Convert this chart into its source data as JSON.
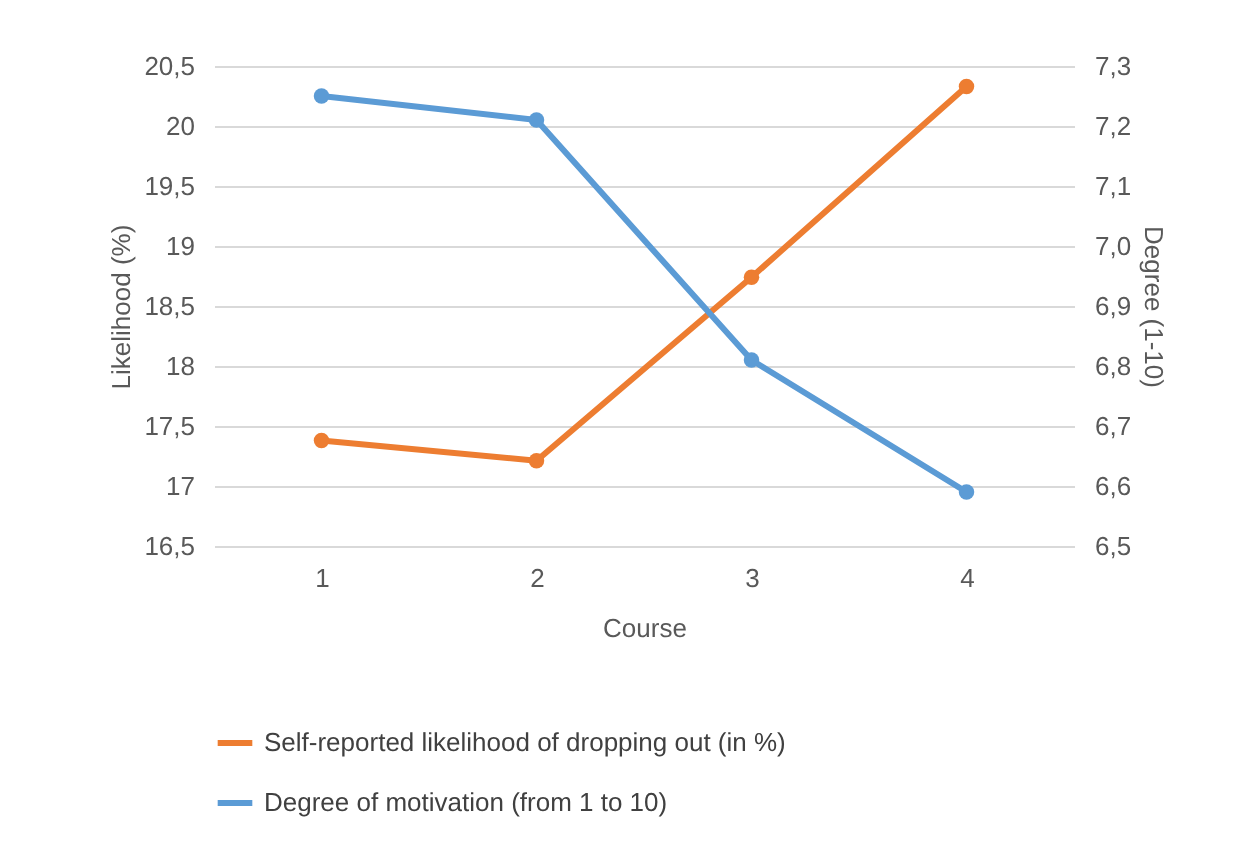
{
  "chart_data": {
    "type": "line",
    "xlabel": "Course",
    "ylabel": "Likelihood (%)",
    "y2label": "Degree  (1-10)",
    "categories": [
      "1",
      "2",
      "3",
      "4"
    ],
    "series": [
      {
        "name": "Self-reported likelihood of dropping out (in %)",
        "color": "#ed7d31",
        "values": [
          17.38,
          17.21,
          18.74,
          20.33
        ]
      },
      {
        "name": "Degree of motivation (from 1 to 10)",
        "color": "#5b9bd5",
        "axis": "y2",
        "values": [
          7.25,
          7.21,
          6.81,
          6.59
        ]
      }
    ],
    "ylim": [
      16.5,
      20.5
    ],
    "yticks": [
      {
        "value": 16.5,
        "label": "16,5"
      },
      17,
      {
        "value": 17.5,
        "label": "17,5"
      },
      18,
      {
        "value": 18.5,
        "label": "18,5"
      },
      19,
      {
        "value": 19.5,
        "label": "19,5"
      },
      20,
      {
        "value": 20.5,
        "label": "20,5"
      }
    ],
    "y2lim": [
      6.5,
      7.3
    ],
    "y2ticks": [
      {
        "value": 6.5,
        "label": "6,5"
      },
      {
        "value": 6.6,
        "label": "6,6"
      },
      {
        "value": 6.7,
        "label": "6,7"
      },
      {
        "value": 6.8,
        "label": "6,8"
      },
      {
        "value": 6.9,
        "label": "6,9"
      },
      {
        "value": 7.0,
        "label": "7,0"
      },
      {
        "value": 7.1,
        "label": "7,1"
      },
      {
        "value": 7.2,
        "label": "7,2"
      },
      {
        "value": 7.3,
        "label": "7,3"
      }
    ],
    "grid": "y",
    "legend": "bottom",
    "marker": "circle",
    "line_style": "solid"
  }
}
